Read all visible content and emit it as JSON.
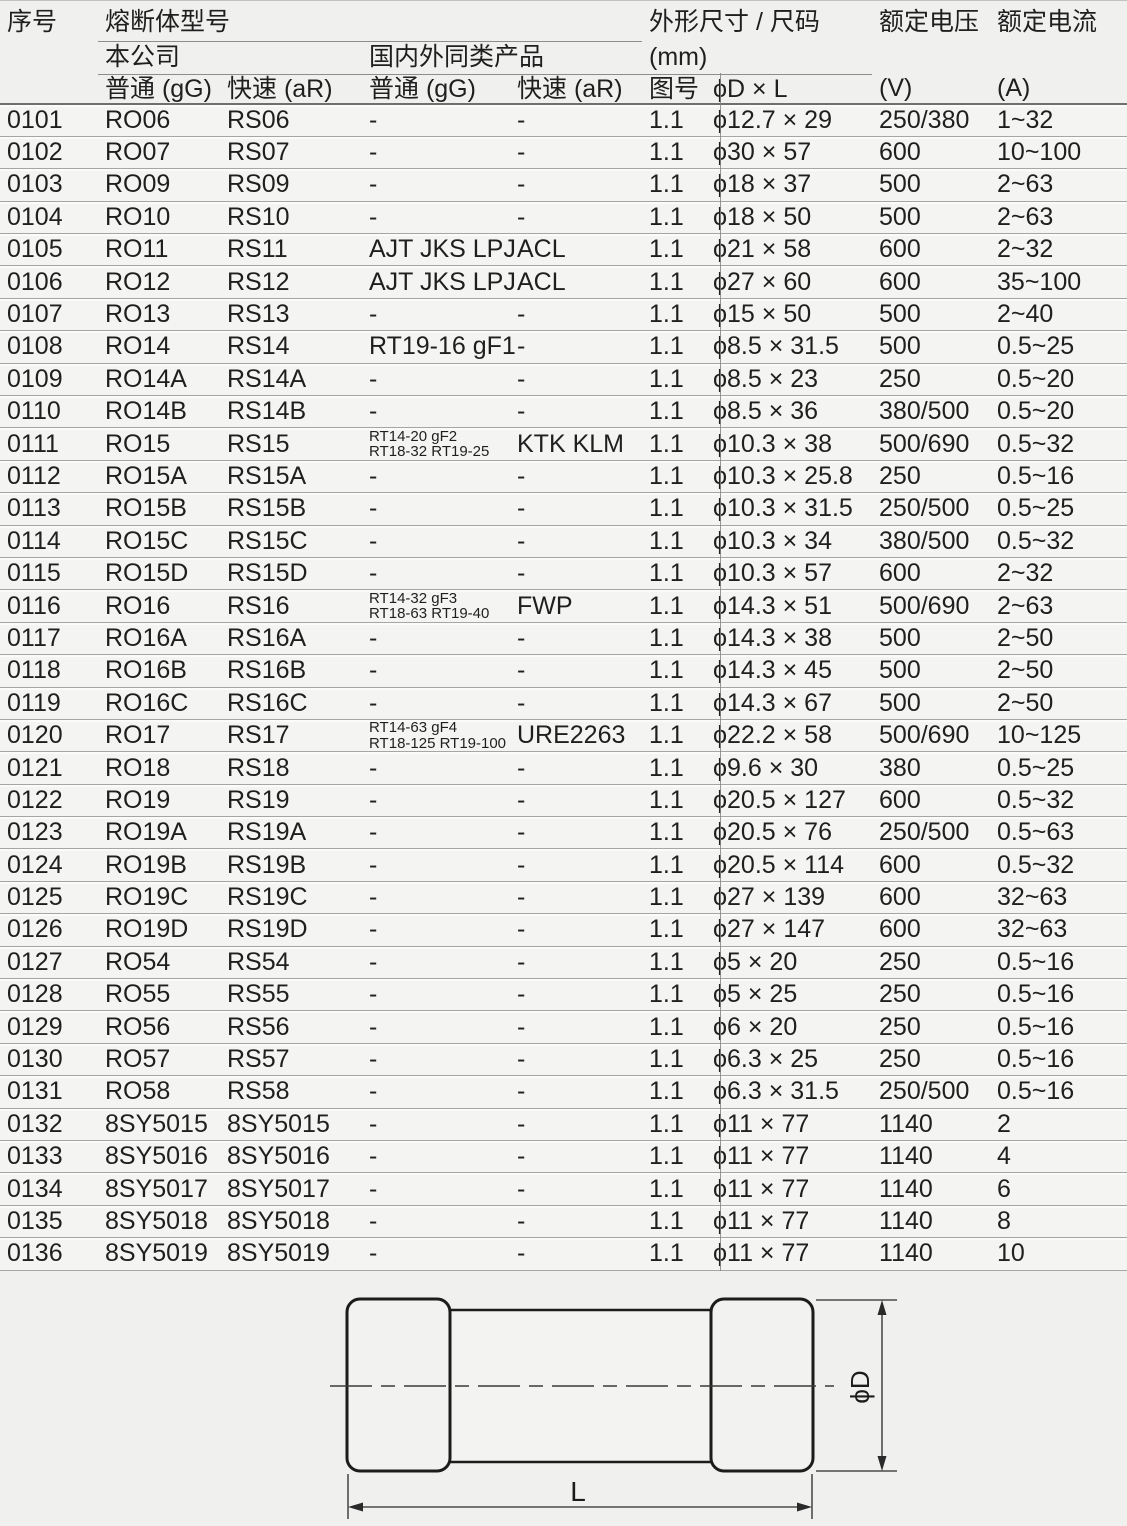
{
  "colors": {
    "page_bg": "#f0f0ef",
    "row_bg": "#f4f4f3",
    "rule_gray": "#a6a6a6",
    "ink": "#1f1f1f"
  },
  "table": {
    "header": {
      "col_serial": "序号",
      "group_model": "熔断体型号",
      "group_company": "本公司",
      "group_similar": "国内外同类产品",
      "group_dims": "外形尺寸 / 尺码",
      "dims_unit": "(mm)",
      "sub_normal_1": "普通 (gG)",
      "sub_fast_1": "快速 (aR)",
      "sub_normal_2": "普通 (gG)",
      "sub_fast_2": "快速 (aR)",
      "col_fig": "图号",
      "col_dxl": "ϕD × L",
      "col_voltage": "额定电压",
      "voltage_unit": "(V)",
      "col_current": "额定电流",
      "current_unit": "(A)"
    },
    "rows": [
      {
        "no": "0101",
        "gg": "RO06",
        "ar": "RS06",
        "sim_gg": "-",
        "sim_ar": "-",
        "fig": "1.1",
        "dim": "ϕ12.7 × 29",
        "v": "250/380",
        "a": "1~32"
      },
      {
        "no": "0102",
        "gg": "RO07",
        "ar": "RS07",
        "sim_gg": "-",
        "sim_ar": "-",
        "fig": "1.1",
        "dim": "ϕ30 × 57",
        "v": "600",
        "a": "10~100"
      },
      {
        "no": "0103",
        "gg": "RO09",
        "ar": "RS09",
        "sim_gg": "-",
        "sim_ar": "-",
        "fig": "1.1",
        "dim": "ϕ18 × 37",
        "v": "500",
        "a": "2~63"
      },
      {
        "no": "0104",
        "gg": "RO10",
        "ar": "RS10",
        "sim_gg": "-",
        "sim_ar": "-",
        "fig": "1.1",
        "dim": "ϕ18 × 50",
        "v": "500",
        "a": "2~63"
      },
      {
        "no": "0105",
        "gg": "RO11",
        "ar": "RS11",
        "sim_gg": "AJT JKS LPJ",
        "sim_ar": "ACL",
        "fig": "1.1",
        "dim": "ϕ21 × 58",
        "v": "600",
        "a": "2~32"
      },
      {
        "no": "0106",
        "gg": "RO12",
        "ar": "RS12",
        "sim_gg": "AJT JKS LPJ",
        "sim_ar": "ACL",
        "fig": "1.1",
        "dim": "ϕ27 × 60",
        "v": "600",
        "a": "35~100"
      },
      {
        "no": "0107",
        "gg": "RO13",
        "ar": "RS13",
        "sim_gg": "-",
        "sim_ar": "-",
        "fig": "1.1",
        "dim": "ϕ15 × 50",
        "v": "500",
        "a": "2~40"
      },
      {
        "no": "0108",
        "gg": "RO14",
        "ar": "RS14",
        "sim_gg": "RT19-16 gF1",
        "sim_ar": "-",
        "fig": "1.1",
        "dim": "ϕ8.5 × 31.5",
        "v": "500",
        "a": "0.5~25"
      },
      {
        "no": "0109",
        "gg": "RO14A",
        "ar": "RS14A",
        "sim_gg": "-",
        "sim_ar": "-",
        "fig": "1.1",
        "dim": "ϕ8.5 × 23",
        "v": "250",
        "a": "0.5~20"
      },
      {
        "no": "0110",
        "gg": "RO14B",
        "ar": "RS14B",
        "sim_gg": "-",
        "sim_ar": "-",
        "fig": "1.1",
        "dim": "ϕ8.5 × 36",
        "v": "380/500",
        "a": "0.5~20"
      },
      {
        "no": "0111",
        "gg": "RO15",
        "ar": "RS15",
        "sim_gg": "RT14-20 gF2\nRT18-32 RT19-25",
        "sim_ar": "KTK KLM",
        "fig": "1.1",
        "dim": "ϕ10.3 × 38",
        "v": "500/690",
        "a": "0.5~32"
      },
      {
        "no": "0112",
        "gg": "RO15A",
        "ar": "RS15A",
        "sim_gg": "-",
        "sim_ar": "-",
        "fig": "1.1",
        "dim": "ϕ10.3 × 25.8",
        "v": "250",
        "a": "0.5~16"
      },
      {
        "no": "0113",
        "gg": "RO15B",
        "ar": "RS15B",
        "sim_gg": "-",
        "sim_ar": "-",
        "fig": "1.1",
        "dim": "ϕ10.3 × 31.5",
        "v": "250/500",
        "a": "0.5~25"
      },
      {
        "no": "0114",
        "gg": "RO15C",
        "ar": "RS15C",
        "sim_gg": "-",
        "sim_ar": "-",
        "fig": "1.1",
        "dim": "ϕ10.3 × 34",
        "v": "380/500",
        "a": "0.5~32"
      },
      {
        "no": "0115",
        "gg": "RO15D",
        "ar": "RS15D",
        "sim_gg": "-",
        "sim_ar": "-",
        "fig": "1.1",
        "dim": "ϕ10.3 × 57",
        "v": "600",
        "a": "2~32"
      },
      {
        "no": "0116",
        "gg": "RO16",
        "ar": "RS16",
        "sim_gg": "RT14-32 gF3\nRT18-63 RT19-40",
        "sim_ar": "FWP",
        "fig": "1.1",
        "dim": "ϕ14.3 × 51",
        "v": "500/690",
        "a": "2~63"
      },
      {
        "no": "0117",
        "gg": "RO16A",
        "ar": "RS16A",
        "sim_gg": "-",
        "sim_ar": "-",
        "fig": "1.1",
        "dim": "ϕ14.3 × 38",
        "v": "500",
        "a": "2~50"
      },
      {
        "no": "0118",
        "gg": "RO16B",
        "ar": "RS16B",
        "sim_gg": "-",
        "sim_ar": "-",
        "fig": "1.1",
        "dim": "ϕ14.3 × 45",
        "v": "500",
        "a": "2~50"
      },
      {
        "no": "0119",
        "gg": "RO16C",
        "ar": "RS16C",
        "sim_gg": "-",
        "sim_ar": "-",
        "fig": "1.1",
        "dim": "ϕ14.3 × 67",
        "v": "500",
        "a": "2~50"
      },
      {
        "no": "0120",
        "gg": "RO17",
        "ar": "RS17",
        "sim_gg": "RT14-63 gF4\nRT18-125 RT19-100",
        "sim_ar": "URE2263",
        "fig": "1.1",
        "dim": "ϕ22.2 × 58",
        "v": "500/690",
        "a": "10~125"
      },
      {
        "no": "0121",
        "gg": "RO18",
        "ar": "RS18",
        "sim_gg": "-",
        "sim_ar": "-",
        "fig": "1.1",
        "dim": "ϕ9.6 × 30",
        "v": "380",
        "a": "0.5~25"
      },
      {
        "no": "0122",
        "gg": "RO19",
        "ar": "RS19",
        "sim_gg": "-",
        "sim_ar": "-",
        "fig": "1.1",
        "dim": "ϕ20.5 × 127",
        "v": "600",
        "a": "0.5~32"
      },
      {
        "no": "0123",
        "gg": "RO19A",
        "ar": "RS19A",
        "sim_gg": "-",
        "sim_ar": "-",
        "fig": "1.1",
        "dim": "ϕ20.5 × 76",
        "v": "250/500",
        "a": "0.5~63"
      },
      {
        "no": "0124",
        "gg": "RO19B",
        "ar": "RS19B",
        "sim_gg": "-",
        "sim_ar": "-",
        "fig": "1.1",
        "dim": "ϕ20.5 × 114",
        "v": "600",
        "a": "0.5~32"
      },
      {
        "no": "0125",
        "gg": "RO19C",
        "ar": "RS19C",
        "sim_gg": "-",
        "sim_ar": "-",
        "fig": "1.1",
        "dim": "ϕ27 × 139",
        "v": "600",
        "a": "32~63"
      },
      {
        "no": "0126",
        "gg": "RO19D",
        "ar": "RS19D",
        "sim_gg": "-",
        "sim_ar": "-",
        "fig": "1.1",
        "dim": "ϕ27 × 147",
        "v": "600",
        "a": "32~63"
      },
      {
        "no": "0127",
        "gg": "RO54",
        "ar": "RS54",
        "sim_gg": "-",
        "sim_ar": "-",
        "fig": "1.1",
        "dim": "ϕ5 × 20",
        "v": "250",
        "a": "0.5~16"
      },
      {
        "no": "0128",
        "gg": "RO55",
        "ar": "RS55",
        "sim_gg": "-",
        "sim_ar": "-",
        "fig": "1.1",
        "dim": "ϕ5 × 25",
        "v": "250",
        "a": "0.5~16"
      },
      {
        "no": "0129",
        "gg": "RO56",
        "ar": "RS56",
        "sim_gg": "-",
        "sim_ar": "-",
        "fig": "1.1",
        "dim": "ϕ6 × 20",
        "v": "250",
        "a": "0.5~16"
      },
      {
        "no": "0130",
        "gg": "RO57",
        "ar": "RS57",
        "sim_gg": "-",
        "sim_ar": "-",
        "fig": "1.1",
        "dim": "ϕ6.3 × 25",
        "v": "250",
        "a": "0.5~16"
      },
      {
        "no": "0131",
        "gg": "RO58",
        "ar": "RS58",
        "sim_gg": "-",
        "sim_ar": "-",
        "fig": "1.1",
        "dim": "ϕ6.3 × 31.5",
        "v": "250/500",
        "a": "0.5~16"
      },
      {
        "no": "0132",
        "gg": "8SY5015",
        "ar": "8SY5015",
        "sim_gg": "-",
        "sim_ar": "-",
        "fig": "1.1",
        "dim": "ϕ11 × 77",
        "v": "1140",
        "a": "2"
      },
      {
        "no": "0133",
        "gg": "8SY5016",
        "ar": "8SY5016",
        "sim_gg": "-",
        "sim_ar": "-",
        "fig": "1.1",
        "dim": "ϕ11 × 77",
        "v": "1140",
        "a": "4"
      },
      {
        "no": "0134",
        "gg": "8SY5017",
        "ar": "8SY5017",
        "sim_gg": "-",
        "sim_ar": "-",
        "fig": "1.1",
        "dim": "ϕ11 × 77",
        "v": "1140",
        "a": "6"
      },
      {
        "no": "0135",
        "gg": "8SY5018",
        "ar": "8SY5018",
        "sim_gg": "-",
        "sim_ar": "-",
        "fig": "1.1",
        "dim": "ϕ11 × 77",
        "v": "1140",
        "a": "8"
      },
      {
        "no": "0136",
        "gg": "8SY5019",
        "ar": "8SY5019",
        "sim_gg": "-",
        "sim_ar": "-",
        "fig": "1.1",
        "dim": "ϕ11 × 77",
        "v": "1140",
        "a": "10"
      }
    ]
  },
  "diagram": {
    "label_length": "L",
    "label_diameter": "ϕD"
  }
}
